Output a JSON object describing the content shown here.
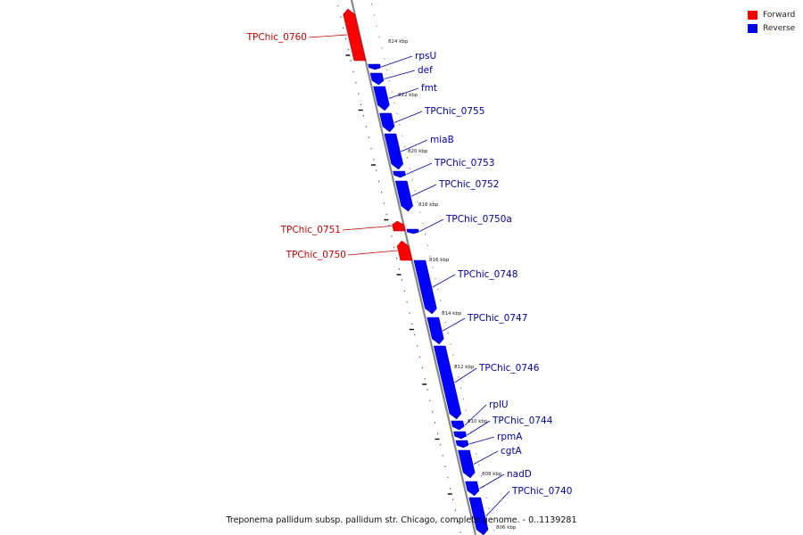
{
  "caption": "Treponema pallidum subsp. pallidum str. Chicago, complete genome. - 0..1139281",
  "legend": {
    "forward_label": "Forward",
    "reverse_label": "Reverse"
  },
  "colors": {
    "forward": "#ff0000",
    "forward_label": "#cc0000",
    "reverse": "#0000ff",
    "reverse_label": "#0000aa",
    "backbone": "#888888"
  },
  "ticks": [
    {
      "label": "824 kbp"
    },
    {
      "label": "822 kbp"
    },
    {
      "label": "820 kbp"
    },
    {
      "label": "818 kbp"
    },
    {
      "label": "816 kbp"
    },
    {
      "label": "814 kbp"
    },
    {
      "label": "812 kbp"
    },
    {
      "label": "810 kbp"
    },
    {
      "label": "808 kbp"
    },
    {
      "label": "806 kbp"
    }
  ],
  "genes": [
    {
      "name": "TPChic_0760",
      "strand": "forward"
    },
    {
      "name": "rpsU",
      "strand": "reverse"
    },
    {
      "name": "def",
      "strand": "reverse"
    },
    {
      "name": "fmt",
      "strand": "reverse"
    },
    {
      "name": "TPChic_0755",
      "strand": "reverse"
    },
    {
      "name": "miaB",
      "strand": "reverse"
    },
    {
      "name": "TPChic_0753",
      "strand": "reverse"
    },
    {
      "name": "TPChic_0752",
      "strand": "reverse"
    },
    {
      "name": "TPChic_0751",
      "strand": "forward"
    },
    {
      "name": "TPChic_0750a",
      "strand": "reverse"
    },
    {
      "name": "TPChic_0750",
      "strand": "forward"
    },
    {
      "name": "TPChic_0748",
      "strand": "reverse"
    },
    {
      "name": "TPChic_0747",
      "strand": "reverse"
    },
    {
      "name": "TPChic_0746",
      "strand": "reverse"
    },
    {
      "name": "rplU",
      "strand": "reverse"
    },
    {
      "name": "TPChic_0744",
      "strand": "reverse"
    },
    {
      "name": "rpmA",
      "strand": "reverse"
    },
    {
      "name": "cgtA",
      "strand": "reverse"
    },
    {
      "name": "nadD",
      "strand": "reverse"
    },
    {
      "name": "TPChic_0740",
      "strand": "reverse"
    }
  ]
}
